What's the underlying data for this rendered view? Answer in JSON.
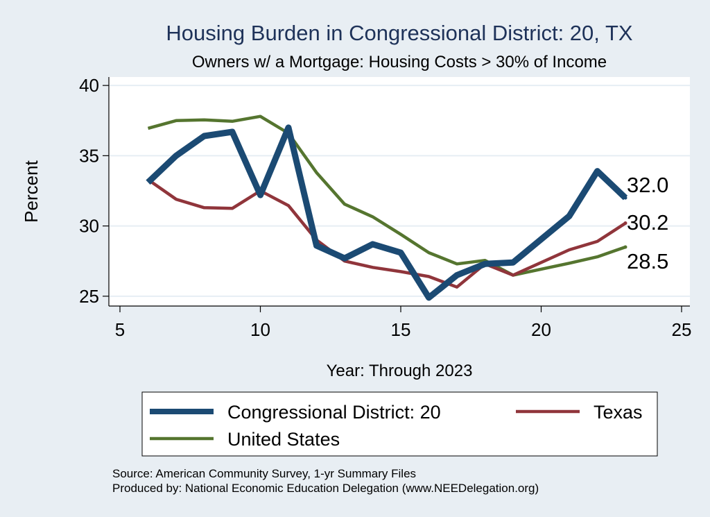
{
  "chart_data": {
    "type": "line",
    "title": "Housing Burden in Congressional District:  20, TX",
    "subtitle": "Owners w/ a Mortgage: Housing Costs > 30% of Income",
    "xlabel": "Year: Through 2023",
    "ylabel": "Percent",
    "xlim": [
      5,
      25
    ],
    "ylim": [
      24.3,
      40.6
    ],
    "xticks": [
      5,
      10,
      15,
      20,
      25
    ],
    "yticks": [
      25,
      30,
      35,
      40
    ],
    "grid": true,
    "legend_position": "bottom",
    "series": [
      {
        "name": "Congressional District:  20",
        "color": "#1b4a73",
        "x": [
          6,
          7,
          8,
          9,
          10,
          11,
          12,
          13,
          14,
          15,
          16,
          17,
          18,
          19,
          21,
          22,
          23
        ],
        "y": [
          33.1,
          35.0,
          36.4,
          36.7,
          32.2,
          37.0,
          28.6,
          27.7,
          28.7,
          28.1,
          24.9,
          26.5,
          27.3,
          27.4,
          30.7,
          33.9,
          32.0
        ],
        "end_label": "32.0"
      },
      {
        "name": "Texas",
        "color": "#90353b",
        "x": [
          6,
          7,
          8,
          9,
          10,
          11,
          12,
          13,
          14,
          15,
          16,
          17,
          18,
          19,
          21,
          22,
          23
        ],
        "y": [
          33.3,
          31.9,
          31.3,
          31.25,
          32.5,
          31.45,
          29.0,
          27.5,
          27.05,
          26.75,
          26.4,
          25.65,
          27.3,
          26.5,
          28.3,
          28.9,
          30.2
        ],
        "end_label": "30.2"
      },
      {
        "name": "United States",
        "color": "#55752f",
        "x": [
          6,
          7,
          8,
          9,
          10,
          11,
          12,
          13,
          14,
          15,
          16,
          17,
          18,
          19,
          21,
          22,
          23
        ],
        "y": [
          36.95,
          37.5,
          37.55,
          37.45,
          37.8,
          36.6,
          33.8,
          31.55,
          30.65,
          29.4,
          28.1,
          27.3,
          27.55,
          26.5,
          27.35,
          27.8,
          28.5
        ],
        "end_label": "28.5"
      }
    ],
    "notes": [
      "Source: American Community Survey, 1-yr Summary Files",
      "Produced by: National Economic Education Delegation (www.NEEDelegation.org)"
    ]
  }
}
